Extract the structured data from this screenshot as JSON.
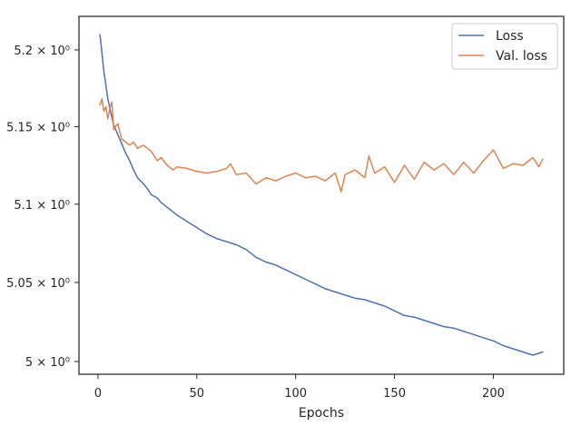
{
  "chart_data": {
    "type": "line",
    "title": "",
    "xlabel": "Epochs",
    "ylabel": "",
    "xlim": [
      -9.6,
      235.6
    ],
    "ylim": [
      4.992,
      5.222
    ],
    "y_scale": "log",
    "xticks": [
      0,
      50,
      100,
      150,
      200
    ],
    "xtick_labels": [
      "0",
      "50",
      "100",
      "150",
      "200"
    ],
    "yticks": [
      5.0,
      5.05,
      5.1,
      5.15,
      5.2
    ],
    "ytick_labels": [
      "5 × 10⁰",
      "5.05 × 10⁰",
      "5.1 × 10⁰",
      "5.15 × 10⁰",
      "5.2 × 10⁰"
    ],
    "grid": false,
    "legend_position": "top-right",
    "series": [
      {
        "name": "Loss",
        "color": "#4c72b0",
        "x": [
          1,
          2,
          3,
          4,
          5,
          6,
          7,
          8,
          10,
          12,
          14,
          16,
          18,
          20,
          23,
          25,
          27,
          30,
          32,
          35,
          40,
          45,
          50,
          55,
          60,
          65,
          70,
          75,
          80,
          85,
          90,
          95,
          100,
          105,
          110,
          115,
          120,
          125,
          130,
          135,
          140,
          145,
          150,
          155,
          160,
          165,
          170,
          175,
          180,
          185,
          190,
          195,
          200,
          205,
          210,
          215,
          220,
          225
        ],
        "y": [
          5.21,
          5.198,
          5.186,
          5.177,
          5.168,
          5.162,
          5.156,
          5.151,
          5.145,
          5.139,
          5.133,
          5.128,
          5.122,
          5.117,
          5.113,
          5.11,
          5.106,
          5.104,
          5.101,
          5.098,
          5.093,
          5.089,
          5.085,
          5.081,
          5.078,
          5.076,
          5.074,
          5.071,
          5.066,
          5.063,
          5.061,
          5.058,
          5.055,
          5.052,
          5.049,
          5.046,
          5.044,
          5.042,
          5.04,
          5.039,
          5.037,
          5.035,
          5.032,
          5.029,
          5.028,
          5.026,
          5.024,
          5.022,
          5.021,
          5.019,
          5.017,
          5.015,
          5.013,
          5.01,
          5.008,
          5.006,
          5.004,
          5.006
        ]
      },
      {
        "name": "Val. loss",
        "color": "#dd8452",
        "x": [
          1,
          2,
          3,
          4,
          5,
          6,
          7,
          8,
          10,
          12,
          14,
          16,
          18,
          20,
          23,
          25,
          27,
          30,
          32,
          35,
          38,
          40,
          45,
          50,
          55,
          60,
          65,
          67,
          70,
          75,
          80,
          85,
          90,
          95,
          100,
          105,
          110,
          115,
          120,
          123,
          125,
          130,
          135,
          137,
          140,
          145,
          150,
          155,
          160,
          165,
          170,
          175,
          180,
          185,
          190,
          195,
          200,
          205,
          210,
          215,
          220,
          223,
          225
        ],
        "y": [
          5.164,
          5.168,
          5.16,
          5.163,
          5.155,
          5.162,
          5.166,
          5.148,
          5.152,
          5.142,
          5.14,
          5.138,
          5.14,
          5.136,
          5.138,
          5.136,
          5.134,
          5.128,
          5.13,
          5.125,
          5.122,
          5.124,
          5.123,
          5.121,
          5.12,
          5.121,
          5.123,
          5.126,
          5.119,
          5.12,
          5.113,
          5.117,
          5.115,
          5.118,
          5.12,
          5.117,
          5.118,
          5.115,
          5.12,
          5.108,
          5.119,
          5.122,
          5.117,
          5.131,
          5.12,
          5.124,
          5.114,
          5.125,
          5.116,
          5.127,
          5.122,
          5.126,
          5.119,
          5.127,
          5.12,
          5.128,
          5.135,
          5.123,
          5.126,
          5.125,
          5.13,
          5.124,
          5.129
        ]
      }
    ]
  }
}
